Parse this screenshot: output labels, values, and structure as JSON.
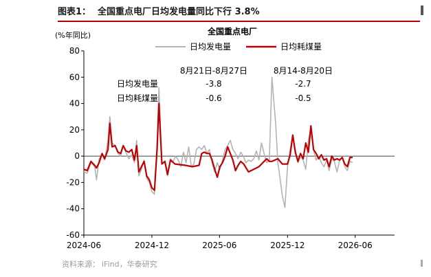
{
  "figure": {
    "label": "图表1：",
    "title": "全国重点电厂日均发电量同比下行 3.8%",
    "source_label": "资料来源：",
    "source": "iFind，华泰研究"
  },
  "chart_data": {
    "type": "line",
    "title": "全国重点电厂",
    "ylabel": "(%年同比)",
    "ylim": [
      -60,
      80
    ],
    "yticks": [
      80,
      60,
      40,
      20,
      0,
      -20,
      -40,
      -60
    ],
    "xlim": [
      "2024-06-01",
      "2026-09-15"
    ],
    "xticks": [
      {
        "date": "2024-06-01",
        "label": "2024-06"
      },
      {
        "date": "2024-12-01",
        "label": "2024-12"
      },
      {
        "date": "2025-06-01",
        "label": "2025-06"
      },
      {
        "date": "2025-12-01",
        "label": "2025-12"
      },
      {
        "date": "2026-06-01",
        "label": "2026-06"
      }
    ],
    "grid": false,
    "legend_position": "top",
    "series": [
      {
        "name": "日均发电量",
        "color": "#b3b3b3",
        "points": [
          [
            "2024-06-01",
            -12
          ],
          [
            "2024-06-10",
            -13
          ],
          [
            "2024-06-20",
            -5
          ],
          [
            "2024-06-30",
            -8
          ],
          [
            "2024-07-05",
            -18
          ],
          [
            "2024-07-12",
            -2
          ],
          [
            "2024-07-20",
            1
          ],
          [
            "2024-07-27",
            -3
          ],
          [
            "2024-08-05",
            12
          ],
          [
            "2024-08-10",
            30
          ],
          [
            "2024-08-16",
            10
          ],
          [
            "2024-08-24",
            8
          ],
          [
            "2024-09-01",
            2
          ],
          [
            "2024-09-08",
            0
          ],
          [
            "2024-09-15",
            8
          ],
          [
            "2024-09-22",
            3
          ],
          [
            "2024-09-30",
            -2
          ],
          [
            "2024-10-08",
            1
          ],
          [
            "2024-10-15",
            -5
          ],
          [
            "2024-10-21",
            12
          ],
          [
            "2024-10-27",
            -15
          ],
          [
            "2024-11-03",
            -10
          ],
          [
            "2024-11-10",
            -3
          ],
          [
            "2024-11-17",
            -17
          ],
          [
            "2024-11-24",
            -20
          ],
          [
            "2024-12-01",
            -27
          ],
          [
            "2024-12-08",
            -29
          ],
          [
            "2024-12-15",
            10
          ],
          [
            "2024-12-20",
            52
          ],
          [
            "2024-12-28",
            -5
          ],
          [
            "2025-01-05",
            -5
          ],
          [
            "2025-01-12",
            -15
          ],
          [
            "2025-01-20",
            -2
          ],
          [
            "2025-01-27",
            -4
          ],
          [
            "2025-02-03",
            0
          ],
          [
            "2025-02-10",
            -3
          ],
          [
            "2025-02-17",
            -8
          ],
          [
            "2025-02-24",
            3
          ],
          [
            "2025-03-03",
            -5
          ],
          [
            "2025-03-10",
            7
          ],
          [
            "2025-03-17",
            -8
          ],
          [
            "2025-03-24",
            -6
          ],
          [
            "2025-03-31",
            5
          ],
          [
            "2025-04-07",
            7
          ],
          [
            "2025-04-14",
            5
          ],
          [
            "2025-04-21",
            8
          ],
          [
            "2025-04-28",
            2
          ],
          [
            "2025-05-05",
            5
          ],
          [
            "2025-05-12",
            -5
          ],
          [
            "2025-05-19",
            -12
          ],
          [
            "2025-05-26",
            -5
          ],
          [
            "2025-06-02",
            -10
          ],
          [
            "2025-06-09",
            -3
          ],
          [
            "2025-06-16",
            5
          ],
          [
            "2025-06-23",
            8
          ],
          [
            "2025-06-30",
            12
          ],
          [
            "2025-07-07",
            5
          ],
          [
            "2025-07-14",
            2
          ],
          [
            "2025-07-21",
            -2
          ],
          [
            "2025-07-28",
            3
          ],
          [
            "2025-08-04",
            0
          ],
          [
            "2025-08-11",
            -5
          ],
          [
            "2025-08-18",
            -3
          ],
          [
            "2025-08-25",
            -4
          ],
          [
            "2025-09-01",
            -2
          ],
          [
            "2025-09-08",
            4
          ],
          [
            "2025-09-15",
            -3
          ],
          [
            "2025-09-22",
            10
          ],
          [
            "2025-09-29",
            2
          ],
          [
            "2025-10-06",
            -5
          ],
          [
            "2025-10-13",
            -3
          ],
          [
            "2025-10-20",
            60
          ],
          [
            "2025-10-25",
            42
          ],
          [
            "2025-10-30",
            25
          ],
          [
            "2025-11-05",
            -5
          ],
          [
            "2025-11-10",
            -15
          ],
          [
            "2025-11-17",
            -30
          ],
          [
            "2025-11-24",
            -39
          ],
          [
            "2025-12-01",
            -8
          ],
          [
            "2025-12-08",
            5
          ],
          [
            "2025-12-15",
            15
          ],
          [
            "2025-12-22",
            5
          ],
          [
            "2025-12-29",
            -5
          ],
          [
            "2026-01-05",
            0
          ],
          [
            "2026-01-12",
            -3
          ],
          [
            "2026-01-19",
            -10
          ],
          [
            "2026-01-26",
            12
          ],
          [
            "2026-02-02",
            22
          ],
          [
            "2026-02-09",
            5
          ],
          [
            "2026-02-16",
            -3
          ],
          [
            "2026-02-23",
            0
          ],
          [
            "2026-03-02",
            -5
          ],
          [
            "2026-03-09",
            -8
          ],
          [
            "2026-03-16",
            -3
          ],
          [
            "2026-03-23",
            -11
          ],
          [
            "2026-03-30",
            -2
          ],
          [
            "2026-04-06",
            -4
          ],
          [
            "2026-04-13",
            -12
          ],
          [
            "2026-04-20",
            -3
          ],
          [
            "2026-04-27",
            -1
          ],
          [
            "2026-05-04",
            -8
          ],
          [
            "2026-05-11",
            -11
          ],
          [
            "2026-05-18",
            -4
          ],
          [
            "2026-05-25",
            -5
          ]
        ]
      },
      {
        "name": "日均耗煤量",
        "color": "#c00000",
        "points": [
          [
            "2024-06-01",
            -10
          ],
          [
            "2024-06-10",
            -11
          ],
          [
            "2024-06-20",
            -4
          ],
          [
            "2024-06-30",
            -7
          ],
          [
            "2024-07-05",
            -9
          ],
          [
            "2024-07-12",
            -5
          ],
          [
            "2024-07-20",
            2
          ],
          [
            "2024-07-27",
            -2
          ],
          [
            "2024-08-05",
            5
          ],
          [
            "2024-08-10",
            25
          ],
          [
            "2024-08-16",
            7
          ],
          [
            "2024-08-24",
            8
          ],
          [
            "2024-09-01",
            3
          ],
          [
            "2024-09-08",
            2
          ],
          [
            "2024-09-15",
            8
          ],
          [
            "2024-09-22",
            4
          ],
          [
            "2024-09-30",
            3
          ],
          [
            "2024-10-08",
            5
          ],
          [
            "2024-10-15",
            -3
          ],
          [
            "2024-10-21",
            8
          ],
          [
            "2024-10-27",
            -12
          ],
          [
            "2024-11-03",
            -8
          ],
          [
            "2024-11-10",
            -4
          ],
          [
            "2024-11-17",
            -15
          ],
          [
            "2024-11-24",
            -18
          ],
          [
            "2024-12-01",
            -24
          ],
          [
            "2024-12-08",
            -26
          ],
          [
            "2024-12-15",
            5
          ],
          [
            "2024-12-20",
            40
          ],
          [
            "2024-12-28",
            -6
          ],
          [
            "2025-01-05",
            -4
          ],
          [
            "2025-01-12",
            -14
          ],
          [
            "2025-01-20",
            -3
          ],
          [
            "2025-02-01",
            -6
          ],
          [
            "2025-03-01",
            -7
          ],
          [
            "2025-03-20",
            -8
          ],
          [
            "2025-04-07",
            -7
          ],
          [
            "2025-04-14",
            2
          ],
          [
            "2025-04-21",
            3
          ],
          [
            "2025-04-28",
            2
          ],
          [
            "2025-05-05",
            2
          ],
          [
            "2025-05-12",
            -3
          ],
          [
            "2025-05-19",
            -10
          ],
          [
            "2025-05-26",
            -16
          ],
          [
            "2025-06-02",
            -8
          ],
          [
            "2025-06-09",
            -5
          ],
          [
            "2025-06-16",
            0
          ],
          [
            "2025-06-23",
            7
          ],
          [
            "2025-06-30",
            2
          ],
          [
            "2025-07-07",
            -3
          ],
          [
            "2025-07-14",
            -11
          ],
          [
            "2025-07-21",
            -7
          ],
          [
            "2025-07-28",
            -4
          ],
          [
            "2025-08-05",
            -6
          ],
          [
            "2025-08-18",
            -12
          ],
          [
            "2025-09-15",
            -8
          ],
          [
            "2025-09-29",
            -4
          ],
          [
            "2025-10-06",
            -2
          ],
          [
            "2025-10-13",
            -4
          ],
          [
            "2025-10-20",
            -4
          ],
          [
            "2025-11-05",
            -2
          ],
          [
            "2025-11-17",
            -6
          ],
          [
            "2025-12-01",
            -6
          ],
          [
            "2025-12-08",
            1
          ],
          [
            "2025-12-15",
            16
          ],
          [
            "2025-12-22",
            3
          ],
          [
            "2025-12-29",
            -4
          ],
          [
            "2026-01-05",
            2
          ],
          [
            "2026-01-12",
            -2
          ],
          [
            "2026-01-19",
            10
          ],
          [
            "2026-01-26",
            3
          ],
          [
            "2026-02-02",
            23
          ],
          [
            "2026-02-09",
            5
          ],
          [
            "2026-02-16",
            2
          ],
          [
            "2026-02-23",
            -2
          ],
          [
            "2026-03-02",
            1
          ],
          [
            "2026-03-09",
            -3
          ],
          [
            "2026-03-16",
            -2
          ],
          [
            "2026-03-23",
            -8
          ],
          [
            "2026-03-30",
            0
          ],
          [
            "2026-04-06",
            -3
          ],
          [
            "2026-04-13",
            -2
          ],
          [
            "2026-04-20",
            -3
          ],
          [
            "2026-04-27",
            -1
          ],
          [
            "2026-05-04",
            -6
          ],
          [
            "2026-05-11",
            -8
          ],
          [
            "2026-05-18",
            -1
          ],
          [
            "2026-05-25",
            -1
          ]
        ]
      }
    ],
    "annotations": {
      "row_labels": [
        "日均发电量",
        "日均耗煤量"
      ],
      "periods": [
        {
          "label": "8月21日-8月27日",
          "values": [
            "-3.8",
            "-0.6"
          ]
        },
        {
          "label": "8月14-8月20日",
          "values": [
            "-2.7",
            "-0.5"
          ]
        }
      ]
    }
  }
}
